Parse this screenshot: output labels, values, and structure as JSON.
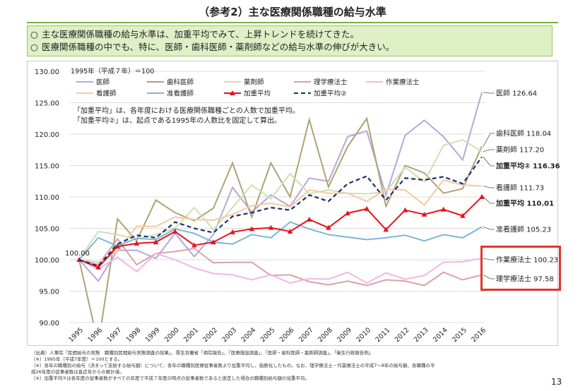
{
  "title": "（参考2）主な医療関係職種の給与水準",
  "summary": {
    "bullet": "○",
    "lines": [
      "主な医療関係職種の給与水準は、加重平均でみて、上昇トレンドを続けてきた。",
      "医療関係職種の中でも、特に、医師・歯科医師・薬剤師などの給与水準の伸びが大きい。"
    ]
  },
  "chart_data": {
    "type": "line",
    "base_note": "1995年（平成７年）＝100",
    "annotation": [
      "「加重平均」は、各年度における医療関係職種ごとの人数で加重平均。",
      "「加重平均②」は、起点である1995年の人数比を固定して算出。"
    ],
    "start_label": "100.00",
    "ylim": [
      90,
      130
    ],
    "yticks": [
      "90.00",
      "95.00",
      "100.00",
      "105.00",
      "110.00",
      "115.00",
      "120.00",
      "125.00",
      "130.00"
    ],
    "categories": [
      "1995",
      "1996",
      "1997",
      "1998",
      "1999",
      "2000",
      "2001",
      "2002",
      "2003",
      "2004",
      "2005",
      "2006",
      "2007",
      "2008",
      "2009",
      "2010",
      "2011",
      "2012",
      "2013",
      "2014",
      "2015",
      "2016"
    ],
    "series": [
      {
        "name": "医師",
        "color": "#b5a8d8",
        "dash": "",
        "values": [
          100,
          96.6,
          101.5,
          101.5,
          100.2,
          104.2,
          100.5,
          104.0,
          111.5,
          107.6,
          110.3,
          108.5,
          113.0,
          112.5,
          119.6,
          120.5,
          110.3,
          119.8,
          122.2,
          119.6,
          115.9,
          126.64
        ],
        "end_label": "医師 126.64",
        "end_bold": false
      },
      {
        "name": "歯科医師",
        "color": "#b0a276",
        "dash": "",
        "values": [
          100,
          86.5,
          106.5,
          103.0,
          109.5,
          107.5,
          106.2,
          108.2,
          115.4,
          106.8,
          115.4,
          110.0,
          122.3,
          111.6,
          118.0,
          122.5,
          108.5,
          115.0,
          113.8,
          110.6,
          111.3,
          118.04
        ],
        "end_label": "歯科医師 118.04",
        "end_bold": false
      },
      {
        "name": "薬剤師",
        "color": "#cfe0b4",
        "dash": "",
        "values": [
          100,
          104.5,
          104.0,
          103.3,
          104.0,
          105.0,
          108.3,
          104.8,
          108.3,
          111.9,
          109.7,
          113.7,
          110.5,
          111.1,
          110.6,
          110.5,
          110.8,
          114.7,
          112.4,
          118.2,
          119.1,
          117.2
        ],
        "end_label": "薬剤師 117.20",
        "end_bold": false
      },
      {
        "name": "理学療法士",
        "color": "#dba2a6",
        "dash": "",
        "values": [
          100,
          99.2,
          103.3,
          99.2,
          101.0,
          101.3,
          101.8,
          99.5,
          99.6,
          99.6,
          97.5,
          97.6,
          96.5,
          96.0,
          96.6,
          95.9,
          96.8,
          96.6,
          95.9,
          98.0,
          96.8,
          97.58
        ],
        "end_label": "理学療法士 97.58",
        "end_bold": false
      },
      {
        "name": "作業療法士",
        "color": "#f3b5ea",
        "dash": "",
        "values": [
          100,
          98.5,
          100.4,
          98.1,
          101.0,
          100.0,
          98.7,
          97.8,
          97.6,
          96.8,
          97.6,
          96.3,
          97.0,
          96.9,
          98.0,
          96.3,
          97.9,
          96.9,
          97.5,
          99.6,
          99.7,
          100.23
        ],
        "end_label": "作業療法士 100.23",
        "end_bold": false
      },
      {
        "name": "看護師",
        "color": "#f5c9a2",
        "dash": "",
        "values": [
          100,
          99.6,
          101.3,
          105.3,
          105.3,
          106.8,
          106.4,
          106.3,
          107.2,
          108.6,
          109.0,
          108.4,
          111.1,
          110.6,
          110.6,
          109.3,
          111.2,
          111.1,
          108.7,
          112.7,
          111.9,
          111.73
        ],
        "end_label": "看護師 111.73",
        "end_bold": false
      },
      {
        "name": "准看護師",
        "color": "#7fb6d8",
        "dash": "",
        "values": [
          100,
          103.5,
          102.2,
          103.4,
          103.2,
          104.9,
          104.2,
          102.8,
          102.5,
          104.0,
          103.5,
          106.0,
          104.9,
          104.0,
          103.6,
          103.2,
          103.5,
          103.9,
          103.0,
          104.0,
          103.5,
          105.23
        ],
        "end_label": "准看護師 105.23",
        "end_bold": false
      },
      {
        "name": "加重平均",
        "color": "#e8121d",
        "dash": "",
        "marker": "triangle",
        "values": [
          100,
          98.8,
          102.1,
          102.6,
          102.8,
          104.5,
          102.3,
          102.8,
          104.4,
          104.9,
          105.1,
          104.5,
          106.4,
          105.1,
          107.4,
          108.1,
          104.8,
          107.9,
          107.2,
          108.0,
          107.0,
          110.01
        ],
        "end_label": "加重平均 110.01",
        "end_bold": true
      },
      {
        "name": "加重平均②",
        "color": "#1c2f6e",
        "dash": "6,4",
        "values": [
          100,
          99.0,
          102.5,
          103.9,
          103.5,
          106.0,
          105.0,
          104.3,
          106.9,
          107.5,
          108.3,
          107.9,
          110.3,
          109.3,
          112.1,
          113.3,
          109.5,
          113.0,
          112.7,
          113.2,
          112.1,
          116.36
        ],
        "end_label": "加重平均② 116.36",
        "end_bold": true
      }
    ]
  },
  "footnotes": [
    "（出典）人事院「民間給与の実態　職種別民間給与実態調査の結果」、厚生労働省「病院報告」、「医療施設調査」、「医師・歯科医師・薬剤師調査」、「衛生行政報告例」",
    "（※）1995年（平成7年度）＝100とする。",
    "（※）各年の職種別の給与（決まって支給する給与額）について、各年の職種別医療従事者数より加重平均し、指数化したもの。なお、理学療法士・作業療法士の平成7〜8年の給与額、各職種の平",
    "成26年度の従事者数は直近年からの推計値。",
    "（※）加重平均②は各年度の従事者数がすべての年度で平成７年度の時点の従事者数であると仮定した場合の職種別給与額の加重平均。"
  ],
  "page_number": "13"
}
